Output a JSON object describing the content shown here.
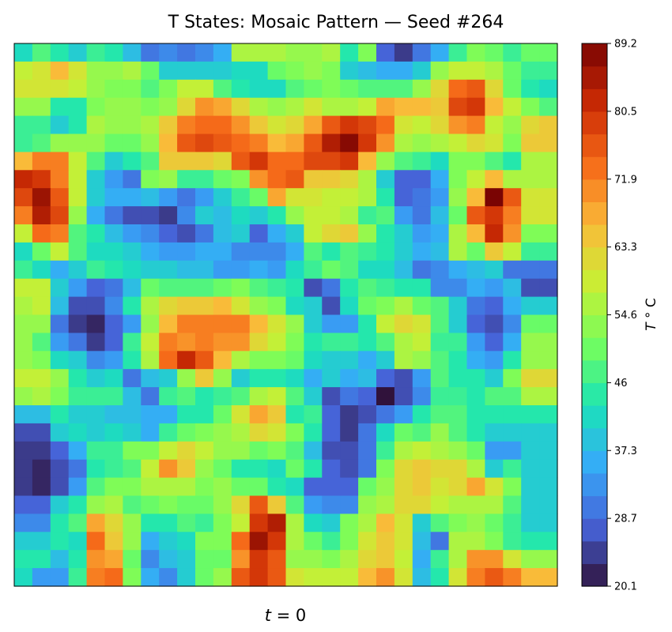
{
  "chart_data": {
    "type": "heatmap",
    "title": "T States: Mosaic Pattern  — Seed #264",
    "xlabel_var": "t",
    "xlabel_rest": " = 0",
    "colorbar": {
      "label_var": "T",
      "label_rest": " ° C",
      "ticks": [
        "20.1",
        "28.7",
        "37.3",
        "46",
        "54.6",
        "63.3",
        "71.9",
        "80.5",
        "89.2"
      ],
      "min": 20.1,
      "max": 89.2,
      "colormap": "turbo",
      "stops": [
        "#30123b",
        "#4662d7",
        "#36aaf9",
        "#1ae4b6",
        "#72fe5e",
        "#c8ef34",
        "#faba39",
        "#f66b19",
        "#ca2a04",
        "#7a0403"
      ]
    },
    "grid": false,
    "rows": 30,
    "cols": 30,
    "values": [
      [
        42,
        48,
        44,
        40,
        46,
        44,
        38,
        30,
        32,
        30,
        32,
        36,
        56,
        56,
        56,
        54,
        54,
        56,
        44,
        52,
        28,
        24,
        30,
        36,
        46,
        52,
        50,
        46,
        50,
        50
      ],
      [
        58,
        60,
        66,
        60,
        54,
        54,
        56,
        50,
        40,
        40,
        40,
        40,
        42,
        42,
        50,
        52,
        54,
        52,
        40,
        38,
        36,
        36,
        40,
        54,
        58,
        58,
        56,
        50,
        46,
        46
      ],
      [
        60,
        60,
        60,
        58,
        54,
        52,
        52,
        48,
        52,
        58,
        58,
        48,
        44,
        42,
        42,
        48,
        50,
        52,
        50,
        48,
        48,
        48,
        54,
        62,
        74,
        76,
        62,
        50,
        44,
        42
      ],
      [
        54,
        54,
        44,
        44,
        52,
        54,
        54,
        52,
        54,
        62,
        70,
        68,
        62,
        56,
        54,
        56,
        60,
        56,
        56,
        58,
        68,
        66,
        66,
        64,
        78,
        80,
        66,
        58,
        52,
        48
      ],
      [
        46,
        46,
        40,
        44,
        56,
        54,
        54,
        56,
        64,
        72,
        74,
        74,
        70,
        64,
        60,
        62,
        68,
        76,
        80,
        78,
        74,
        60,
        58,
        62,
        70,
        72,
        58,
        54,
        62,
        64
      ],
      [
        46,
        48,
        54,
        54,
        54,
        50,
        50,
        54,
        66,
        76,
        78,
        76,
        74,
        72,
        66,
        68,
        76,
        84,
        88,
        80,
        70,
        56,
        54,
        56,
        58,
        62,
        60,
        52,
        64,
        64
      ],
      [
        66,
        72,
        72,
        58,
        48,
        40,
        44,
        48,
        64,
        64,
        64,
        62,
        76,
        80,
        74,
        74,
        78,
        78,
        80,
        66,
        54,
        48,
        46,
        42,
        52,
        52,
        48,
        44,
        56,
        56
      ],
      [
        82,
        80,
        72,
        58,
        40,
        34,
        30,
        52,
        54,
        46,
        46,
        50,
        52,
        70,
        74,
        76,
        64,
        64,
        62,
        56,
        40,
        28,
        28,
        36,
        52,
        58,
        66,
        56,
        56,
        56
      ],
      [
        78,
        86,
        76,
        58,
        40,
        36,
        36,
        38,
        34,
        30,
        34,
        40,
        46,
        50,
        68,
        60,
        60,
        58,
        58,
        56,
        44,
        28,
        30,
        34,
        54,
        66,
        90,
        76,
        60,
        60
      ],
      [
        72,
        84,
        78,
        54,
        36,
        30,
        26,
        26,
        24,
        32,
        40,
        38,
        42,
        40,
        44,
        54,
        58,
        58,
        56,
        46,
        48,
        34,
        30,
        38,
        50,
        76,
        80,
        72,
        60,
        60
      ],
      [
        58,
        74,
        72,
        48,
        44,
        38,
        34,
        32,
        28,
        26,
        30,
        38,
        40,
        28,
        36,
        40,
        58,
        62,
        64,
        54,
        44,
        40,
        34,
        36,
        56,
        66,
        82,
        70,
        52,
        52
      ],
      [
        42,
        50,
        58,
        48,
        42,
        42,
        40,
        36,
        34,
        34,
        36,
        36,
        32,
        32,
        32,
        36,
        48,
        44,
        48,
        46,
        44,
        40,
        36,
        38,
        56,
        50,
        64,
        58,
        46,
        46
      ],
      [
        46,
        42,
        36,
        40,
        46,
        44,
        42,
        40,
        40,
        38,
        38,
        34,
        34,
        36,
        34,
        42,
        46,
        50,
        48,
        42,
        42,
        38,
        30,
        32,
        36,
        38,
        40,
        30,
        30,
        30
      ],
      [
        58,
        58,
        40,
        34,
        28,
        30,
        38,
        50,
        48,
        48,
        48,
        50,
        52,
        48,
        46,
        44,
        26,
        30,
        44,
        48,
        46,
        44,
        44,
        32,
        32,
        36,
        34,
        38,
        26,
        26
      ],
      [
        56,
        58,
        38,
        26,
        26,
        32,
        44,
        56,
        62,
        64,
        64,
        66,
        60,
        54,
        52,
        42,
        40,
        26,
        42,
        50,
        52,
        56,
        50,
        48,
        40,
        30,
        28,
        36,
        40,
        40
      ],
      [
        54,
        54,
        30,
        24,
        22,
        28,
        34,
        54,
        66,
        72,
        72,
        72,
        72,
        66,
        60,
        54,
        40,
        34,
        34,
        44,
        58,
        62,
        60,
        48,
        40,
        28,
        26,
        32,
        50,
        50
      ],
      [
        54,
        48,
        34,
        30,
        24,
        28,
        46,
        58,
        72,
        70,
        72,
        70,
        70,
        62,
        58,
        52,
        44,
        46,
        46,
        44,
        48,
        56,
        58,
        46,
        46,
        34,
        28,
        36,
        54,
        54
      ],
      [
        54,
        52,
        42,
        40,
        32,
        34,
        44,
        56,
        74,
        82,
        76,
        66,
        56,
        52,
        52,
        50,
        42,
        40,
        40,
        36,
        40,
        56,
        54,
        48,
        44,
        36,
        34,
        44,
        54,
        54
      ],
      [
        58,
        58,
        54,
        44,
        40,
        42,
        30,
        38,
        40,
        54,
        64,
        54,
        40,
        44,
        44,
        42,
        36,
        40,
        36,
        38,
        28,
        26,
        34,
        48,
        44,
        44,
        40,
        52,
        62,
        62
      ],
      [
        54,
        56,
        52,
        46,
        46,
        46,
        38,
        30,
        46,
        48,
        44,
        46,
        48,
        56,
        58,
        48,
        40,
        26,
        30,
        28,
        20,
        26,
        32,
        46,
        46,
        44,
        48,
        48,
        56,
        56
      ],
      [
        38,
        38,
        44,
        40,
        40,
        38,
        38,
        36,
        36,
        44,
        44,
        50,
        60,
        68,
        64,
        44,
        46,
        28,
        24,
        26,
        30,
        34,
        44,
        48,
        48,
        44,
        44,
        44,
        44,
        44
      ],
      [
        26,
        26,
        40,
        42,
        40,
        42,
        40,
        36,
        46,
        50,
        52,
        54,
        56,
        62,
        60,
        52,
        44,
        28,
        24,
        30,
        42,
        50,
        48,
        54,
        48,
        44,
        40,
        40,
        40,
        40
      ],
      [
        24,
        24,
        28,
        36,
        46,
        46,
        52,
        52,
        58,
        62,
        58,
        54,
        54,
        50,
        52,
        48,
        38,
        26,
        26,
        30,
        46,
        56,
        58,
        56,
        54,
        50,
        34,
        34,
        40,
        40
      ],
      [
        24,
        22,
        26,
        30,
        44,
        46,
        48,
        58,
        70,
        64,
        54,
        50,
        44,
        44,
        42,
        50,
        44,
        28,
        26,
        30,
        52,
        62,
        64,
        62,
        62,
        56,
        40,
        46,
        40,
        40
      ],
      [
        24,
        22,
        26,
        34,
        48,
        52,
        52,
        56,
        56,
        56,
        52,
        54,
        50,
        50,
        44,
        42,
        28,
        28,
        28,
        50,
        54,
        62,
        64,
        60,
        62,
        68,
        60,
        52,
        40,
        40
      ],
      [
        28,
        28,
        40,
        44,
        54,
        56,
        48,
        50,
        52,
        50,
        50,
        54,
        62,
        76,
        64,
        48,
        34,
        32,
        32,
        54,
        56,
        62,
        62,
        58,
        56,
        56,
        56,
        48,
        40,
        40
      ],
      [
        32,
        32,
        44,
        48,
        68,
        62,
        54,
        44,
        44,
        48,
        46,
        52,
        58,
        80,
        84,
        56,
        42,
        40,
        52,
        56,
        66,
        60,
        40,
        48,
        52,
        54,
        50,
        46,
        40,
        40
      ],
      [
        40,
        40,
        44,
        42,
        74,
        64,
        54,
        36,
        40,
        42,
        52,
        52,
        74,
        86,
        80,
        56,
        50,
        46,
        52,
        60,
        64,
        60,
        38,
        30,
        56,
        56,
        52,
        46,
        44,
        44
      ],
      [
        44,
        44,
        38,
        44,
        70,
        68,
        50,
        32,
        38,
        40,
        50,
        50,
        70,
        80,
        76,
        54,
        54,
        52,
        56,
        62,
        64,
        58,
        36,
        46,
        56,
        70,
        70,
        60,
        54,
        54
      ],
      [
        42,
        34,
        34,
        46,
        72,
        74,
        52,
        36,
        32,
        40,
        50,
        54,
        76,
        80,
        76,
        60,
        58,
        58,
        58,
        66,
        70,
        60,
        38,
        44,
        60,
        72,
        76,
        72,
        66,
        66
      ]
    ]
  }
}
